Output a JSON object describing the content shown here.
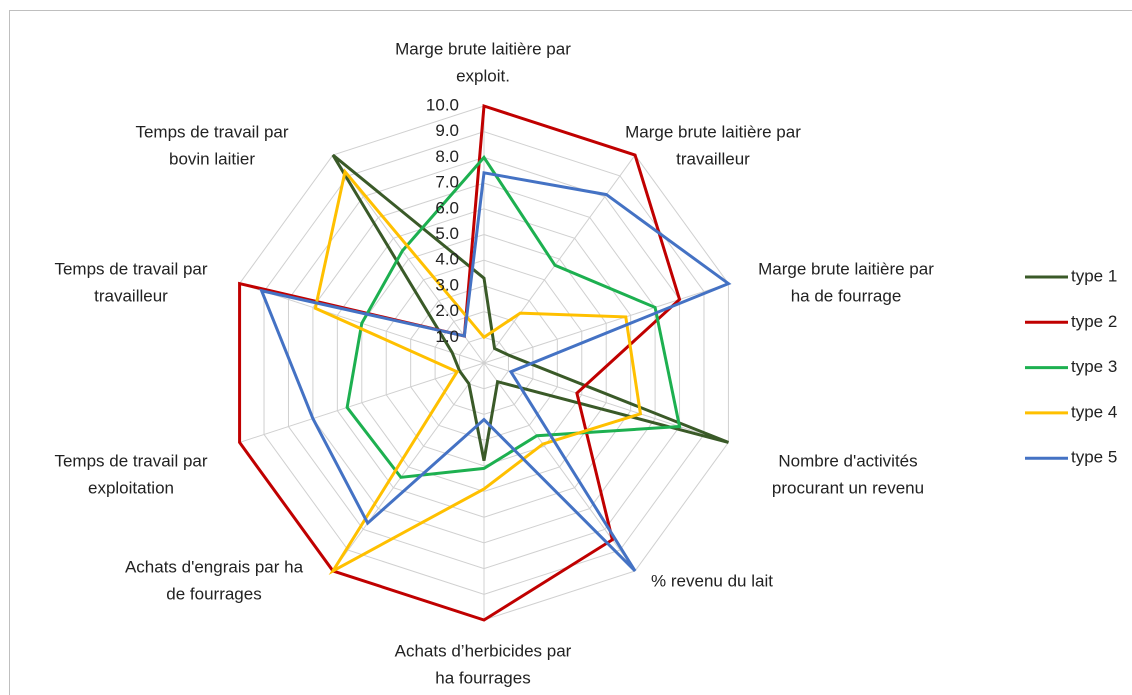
{
  "chart_data": {
    "type": "radar",
    "categories": [
      [
        "Marge brute laitière par",
        "exploit."
      ],
      [
        "Marge brute laitière par",
        "travailleur"
      ],
      [
        "Marge brute laitière par",
        "ha de fourrage"
      ],
      [
        "Nombre d'activités",
        "procurant un revenu"
      ],
      [
        "% revenu du lait"
      ],
      [
        "Achats d’herbicides par",
        "ha fourrages"
      ],
      [
        "Achats d'engrais par ha",
        "de fourrages"
      ],
      [
        "Temps de travail par",
        "exploitation"
      ],
      [
        "Temps de travail par",
        "travailleur"
      ],
      [
        "Temps de travail par",
        "bovin laitier"
      ]
    ],
    "rlim": [
      0,
      10
    ],
    "rticks": [
      {
        "value": 1,
        "label": "1.0"
      },
      {
        "value": 2,
        "label": "2.0"
      },
      {
        "value": 3,
        "label": "3.0"
      },
      {
        "value": 4,
        "label": "4.0"
      },
      {
        "value": 5,
        "label": "5.0"
      },
      {
        "value": 6,
        "label": "6.0"
      },
      {
        "value": 7,
        "label": "7.0"
      },
      {
        "value": 8,
        "label": "8.0"
      },
      {
        "value": 9,
        "label": "9.0"
      },
      {
        "value": 10,
        "label": "10.0"
      }
    ],
    "grid": true,
    "legend": "right",
    "series": [
      {
        "name": "type 1",
        "color": "#3a5a28",
        "values": [
          3.3,
          0.7,
          1,
          10,
          0.9,
          3.8,
          1,
          1,
          1.3,
          10
        ]
      },
      {
        "name": "type 2",
        "color": "#c00000",
        "values": [
          10,
          10,
          8,
          3.8,
          8.5,
          10,
          10,
          10,
          10,
          1.3
        ]
      },
      {
        "name": "type 3",
        "color": "#1db050",
        "values": [
          8,
          4.7,
          7,
          8,
          3.5,
          4.1,
          5.5,
          5.6,
          5,
          5.4
        ]
      },
      {
        "name": "type 4",
        "color": "#ffc000",
        "values": [
          1,
          2.4,
          5.8,
          6.4,
          3.9,
          4.9,
          10,
          1.1,
          6.9,
          9.2
        ]
      },
      {
        "name": "type 5",
        "color": "#4472c4",
        "values": [
          7.4,
          8.1,
          10,
          1.1,
          10,
          2.2,
          7.7,
          7,
          9.1,
          1.3
        ]
      }
    ]
  }
}
